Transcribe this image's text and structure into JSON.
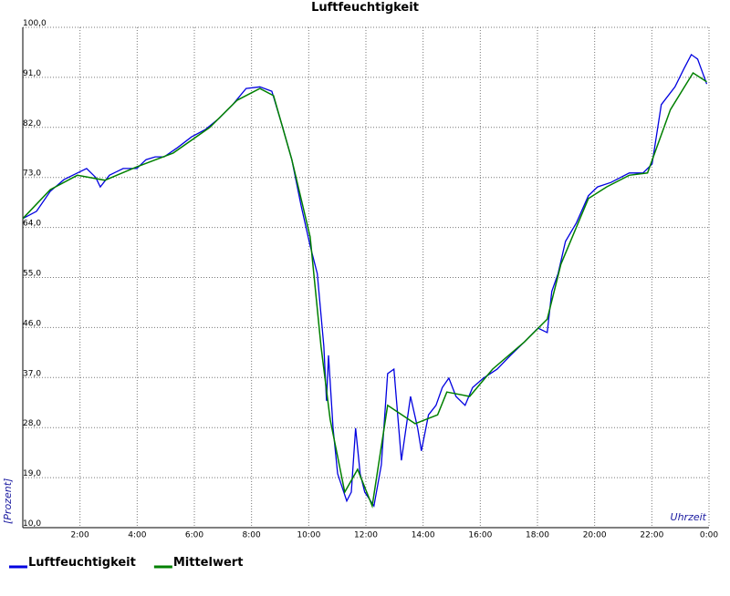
{
  "chart_data": {
    "type": "line",
    "title": "Luftfeuchtigkeit",
    "y_label": "[Prozent]",
    "x_label": "Uhrzeit",
    "xlim": [
      0,
      24
    ],
    "ylim": [
      10,
      100
    ],
    "grid": true,
    "xticks": [
      {
        "value": 2,
        "label": "2:00"
      },
      {
        "value": 4,
        "label": "4:00"
      },
      {
        "value": 6,
        "label": "6:00"
      },
      {
        "value": 8,
        "label": "8:00"
      },
      {
        "value": 10,
        "label": "10:00"
      },
      {
        "value": 12,
        "label": "12:00"
      },
      {
        "value": 14,
        "label": "14:00"
      },
      {
        "value": 16,
        "label": "16:00"
      },
      {
        "value": 18,
        "label": "18:00"
      },
      {
        "value": 20,
        "label": "20:00"
      },
      {
        "value": 22,
        "label": "22:00"
      },
      {
        "value": 24,
        "label": "0:00"
      }
    ],
    "yticks": [
      {
        "value": 10,
        "label": "10,0"
      },
      {
        "value": 19,
        "label": "19,0"
      },
      {
        "value": 28,
        "label": "28,0"
      },
      {
        "value": 37,
        "label": "37,0"
      },
      {
        "value": 46,
        "label": "46,0"
      },
      {
        "value": 55,
        "label": "55,0"
      },
      {
        "value": 64,
        "label": "64,0"
      },
      {
        "value": 73,
        "label": "73,0"
      },
      {
        "value": 82,
        "label": "82,0"
      },
      {
        "value": 91,
        "label": "91,0"
      },
      {
        "value": 100,
        "label": "100,0"
      }
    ],
    "series": [
      {
        "name": "Luftfeuchtigkeit",
        "color": "#0000e0",
        "x": [
          0,
          0.48,
          0.96,
          1.44,
          1.91,
          2.23,
          2.55,
          2.71,
          3.03,
          3.51,
          3.99,
          4.31,
          4.63,
          4.94,
          5.42,
          5.9,
          6.38,
          6.86,
          7.34,
          7.81,
          8.29,
          8.71,
          9.09,
          9.41,
          9.73,
          10.05,
          10.3,
          10.53,
          10.62,
          10.69,
          10.85,
          11.01,
          11.33,
          11.49,
          11.64,
          11.8,
          11.96,
          12.28,
          12.54,
          12.76,
          12.98,
          13.24,
          13.56,
          13.81,
          13.94,
          14.19,
          14.45,
          14.67,
          14.9,
          15.15,
          15.47,
          15.73,
          16.11,
          16.59,
          17.06,
          17.54,
          18.02,
          18.34,
          18.5,
          18.72,
          18.98,
          19.36,
          19.78,
          20.1,
          20.57,
          21.21,
          21.69,
          22.01,
          22.33,
          22.81,
          23.13,
          23.38,
          23.6,
          23.92
        ],
        "values": [
          65.6,
          66.9,
          70.5,
          72.6,
          73.8,
          74.6,
          73.0,
          71.3,
          73.4,
          74.6,
          74.6,
          76.2,
          76.7,
          76.7,
          78.4,
          80.3,
          81.6,
          83.6,
          86.1,
          89.0,
          89.3,
          88.5,
          82.0,
          76.2,
          68.0,
          60.7,
          55.7,
          42.6,
          32.8,
          41.0,
          27.9,
          19.7,
          14.8,
          16.4,
          27.9,
          19.7,
          16.4,
          13.9,
          21.3,
          37.7,
          38.5,
          22.1,
          33.6,
          27.9,
          23.8,
          30.3,
          32.0,
          35.2,
          36.9,
          33.6,
          32.0,
          35.2,
          36.9,
          38.5,
          41.0,
          43.4,
          45.9,
          45.1,
          52.5,
          55.7,
          61.5,
          64.8,
          69.7,
          71.3,
          72.1,
          73.8,
          73.8,
          75.4,
          86.1,
          89.3,
          92.6,
          95.1,
          94.3,
          89.8
        ]
      },
      {
        "name": "Mittelwert",
        "color": "#008000",
        "x": [
          0,
          0.96,
          1.91,
          2.87,
          3.99,
          5.26,
          6.54,
          7.5,
          8.29,
          8.77,
          9.41,
          10.05,
          10.43,
          10.75,
          11.26,
          11.71,
          12.22,
          12.76,
          13.72,
          14.51,
          14.83,
          15.63,
          16.43,
          17.54,
          18.34,
          18.82,
          19.78,
          20.42,
          21.21,
          21.85,
          22.65,
          23.44,
          23.92
        ],
        "values": [
          65.6,
          70.8,
          73.4,
          72.5,
          74.9,
          77.4,
          82.0,
          86.9,
          89.0,
          87.7,
          76.2,
          62.3,
          42.6,
          29.5,
          16.4,
          20.5,
          13.9,
          32.0,
          28.7,
          30.3,
          34.4,
          33.6,
          38.5,
          43.4,
          47.5,
          57.4,
          69.2,
          71.3,
          73.4,
          73.8,
          85.2,
          91.8,
          90.2
        ]
      }
    ]
  }
}
